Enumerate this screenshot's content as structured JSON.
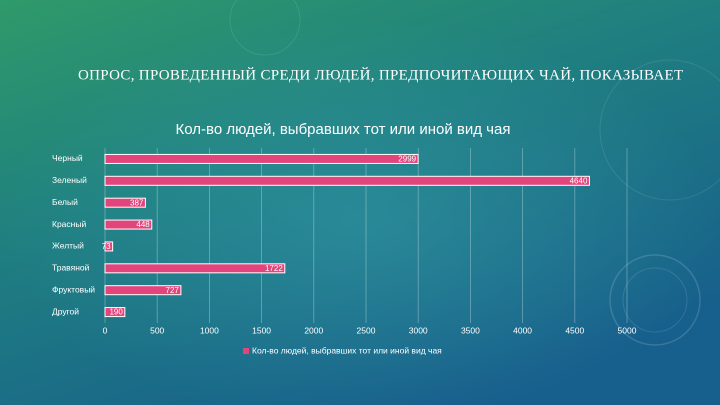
{
  "heading": "ОПРОС, ПРОВЕДЕННЫЙ СРЕДИ ЛЮДЕЙ, ПРЕДПОЧИТАЮЩИХ ЧАЙ, ПОКАЗЫВАЕТ",
  "chart_data": {
    "type": "bar",
    "orientation": "horizontal",
    "title": "Кол-во людей, выбравших тот или иной вид чая",
    "categories": [
      "Черный",
      "Зеленый",
      "Белый",
      "Красный",
      "Желтый",
      "Травяной",
      "Фруктовый",
      "Другой"
    ],
    "series": [
      {
        "name": "Кол-во людей, выбравших тот или иной вид чая",
        "color": "#e2457c",
        "values": [
          2999,
          4640,
          387,
          448,
          73,
          1722,
          727,
          190
        ]
      }
    ],
    "xlim": [
      0,
      5000
    ],
    "xticks": [
      0,
      500,
      1000,
      1500,
      2000,
      2500,
      3000,
      3500,
      4000,
      4500,
      5000
    ],
    "grid": true,
    "legend": "bottom"
  }
}
